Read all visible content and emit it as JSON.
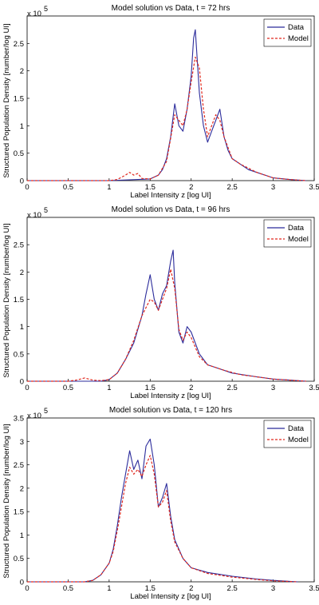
{
  "chart_data": [
    {
      "type": "line",
      "title": "Model solution vs Data, t = 72 hrs",
      "xlabel": "Label Intensity z [log UI]",
      "ylabel": "Structured Population Density [number/log UI]",
      "y_multiplier": "x 10",
      "y_exponent": "5",
      "xlim": [
        0,
        3.5
      ],
      "ylim": [
        0,
        3
      ],
      "x_ticks": [
        0,
        0.5,
        1,
        1.5,
        2,
        2.5,
        3,
        3.5
      ],
      "x_tick_labels": [
        "0",
        "0.5",
        "1",
        "1.5",
        "2",
        "2.5",
        "3",
        "3.5"
      ],
      "y_ticks": [
        0,
        0.5,
        1,
        1.5,
        2,
        2.5
      ],
      "y_tick_labels": [
        "0",
        "0.5",
        "1",
        "1.5",
        "2",
        "2.5"
      ],
      "legend_position": "top-right",
      "series": [
        {
          "name": "Data",
          "color": "#2b2b9b",
          "style": "solid",
          "x": [
            0,
            1.0,
            1.5,
            1.6,
            1.65,
            1.7,
            1.75,
            1.8,
            1.85,
            1.9,
            1.95,
            2.0,
            2.03,
            2.05,
            2.07,
            2.1,
            2.15,
            2.2,
            2.25,
            2.3,
            2.35,
            2.4,
            2.45,
            2.5,
            2.6,
            2.7,
            2.8,
            2.9,
            3.0,
            3.2,
            3.4
          ],
          "y": [
            0,
            0,
            0.03,
            0.1,
            0.2,
            0.4,
            0.8,
            1.4,
            1.0,
            0.9,
            1.3,
            1.9,
            2.6,
            2.75,
            2.3,
            1.6,
            1.0,
            0.7,
            0.9,
            1.1,
            1.3,
            0.8,
            0.55,
            0.4,
            0.3,
            0.2,
            0.15,
            0.1,
            0.05,
            0.02,
            0
          ]
        },
        {
          "name": "Model",
          "color": "#e0281e",
          "style": "dashed",
          "x": [
            0,
            1.0,
            1.1,
            1.2,
            1.25,
            1.3,
            1.35,
            1.4,
            1.5,
            1.6,
            1.7,
            1.8,
            1.85,
            1.9,
            1.95,
            2.0,
            2.05,
            2.1,
            2.15,
            2.2,
            2.25,
            2.3,
            2.35,
            2.4,
            2.5,
            2.6,
            2.8,
            3.0,
            3.2,
            3.4
          ],
          "y": [
            0,
            0,
            0.02,
            0.1,
            0.15,
            0.1,
            0.13,
            0.04,
            0.03,
            0.1,
            0.35,
            1.2,
            1.1,
            1.0,
            1.3,
            1.8,
            2.25,
            2.05,
            1.3,
            0.8,
            1.0,
            1.2,
            1.1,
            0.8,
            0.4,
            0.3,
            0.15,
            0.05,
            0.02,
            0
          ]
        }
      ]
    },
    {
      "type": "line",
      "title": "Model solution vs Data, t = 96 hrs",
      "xlabel": "Label Intensity z [log UI]",
      "ylabel": "Structured Population Density [number/log UI]",
      "y_multiplier": "x 10",
      "y_exponent": "5",
      "xlim": [
        0,
        3.5
      ],
      "ylim": [
        0,
        3
      ],
      "x_ticks": [
        0,
        0.5,
        1,
        1.5,
        2,
        2.5,
        3,
        3.5
      ],
      "x_tick_labels": [
        "0",
        "0.5",
        "1",
        "1.5",
        "2",
        "2.5",
        "3",
        "3.5"
      ],
      "y_ticks": [
        0,
        0.5,
        1,
        1.5,
        2,
        2.5
      ],
      "y_tick_labels": [
        "0",
        "0.5",
        "1",
        "1.5",
        "2",
        "2.5"
      ],
      "legend_position": "top-right",
      "series": [
        {
          "name": "Data",
          "color": "#2b2b9b",
          "style": "solid",
          "x": [
            0,
            0.9,
            1.0,
            1.1,
            1.2,
            1.3,
            1.4,
            1.45,
            1.5,
            1.55,
            1.6,
            1.65,
            1.7,
            1.75,
            1.78,
            1.8,
            1.85,
            1.9,
            1.95,
            2.0,
            2.1,
            2.2,
            2.3,
            2.5,
            2.8,
            3.0,
            3.2,
            3.4
          ],
          "y": [
            0,
            0,
            0.03,
            0.15,
            0.4,
            0.7,
            1.2,
            1.6,
            1.95,
            1.5,
            1.3,
            1.6,
            1.75,
            2.2,
            2.4,
            1.8,
            0.9,
            0.7,
            1.0,
            0.9,
            0.5,
            0.3,
            0.25,
            0.15,
            0.08,
            0.04,
            0.02,
            0
          ]
        },
        {
          "name": "Model",
          "color": "#e0281e",
          "style": "dashed",
          "x": [
            0,
            0.5,
            0.6,
            0.7,
            0.8,
            0.9,
            1.0,
            1.1,
            1.2,
            1.3,
            1.4,
            1.5,
            1.55,
            1.6,
            1.65,
            1.7,
            1.75,
            1.8,
            1.85,
            1.9,
            1.95,
            2.0,
            2.1,
            2.2,
            2.4,
            2.6,
            3.0,
            3.4
          ],
          "y": [
            0,
            0,
            0.02,
            0.06,
            0.02,
            0.01,
            0.03,
            0.15,
            0.4,
            0.75,
            1.2,
            1.5,
            1.45,
            1.3,
            1.5,
            1.7,
            2.05,
            1.7,
            0.95,
            0.75,
            0.9,
            0.8,
            0.45,
            0.3,
            0.2,
            0.12,
            0.04,
            0
          ]
        }
      ]
    },
    {
      "type": "line",
      "title": "Model solution vs Data, t = 120 hrs",
      "xlabel": "Label Intensity z [log UI]",
      "ylabel": "Structured Population Density [number/log UI]",
      "y_multiplier": "x 10",
      "y_exponent": "5",
      "xlim": [
        0,
        3.5
      ],
      "ylim": [
        0,
        3.5
      ],
      "x_ticks": [
        0,
        0.5,
        1,
        1.5,
        2,
        2.5,
        3,
        3.5
      ],
      "x_tick_labels": [
        "0",
        "0.5",
        "1",
        "1.5",
        "2",
        "2.5",
        "3",
        "3.5"
      ],
      "y_ticks": [
        0,
        0.5,
        1,
        1.5,
        2,
        2.5,
        3,
        3.5
      ],
      "y_tick_labels": [
        "0",
        "0.5",
        "1",
        "1.5",
        "2",
        "2.5",
        "3",
        "3.5"
      ],
      "legend_position": "top-right",
      "series": [
        {
          "name": "Data",
          "color": "#2b2b9b",
          "style": "solid",
          "x": [
            0,
            0.7,
            0.8,
            0.9,
            1.0,
            1.05,
            1.1,
            1.15,
            1.2,
            1.25,
            1.3,
            1.35,
            1.4,
            1.45,
            1.5,
            1.55,
            1.6,
            1.65,
            1.7,
            1.75,
            1.8,
            1.9,
            2.0,
            2.2,
            2.5,
            2.8,
            3.0,
            3.3
          ],
          "y": [
            0,
            0,
            0.03,
            0.15,
            0.4,
            0.7,
            1.2,
            1.8,
            2.3,
            2.8,
            2.4,
            2.6,
            2.2,
            2.9,
            3.05,
            2.5,
            1.6,
            1.8,
            2.1,
            1.4,
            0.9,
            0.5,
            0.3,
            0.2,
            0.12,
            0.06,
            0.03,
            0
          ]
        },
        {
          "name": "Model",
          "color": "#e0281e",
          "style": "dashed",
          "x": [
            0,
            0.7,
            0.8,
            0.9,
            1.0,
            1.05,
            1.1,
            1.15,
            1.2,
            1.25,
            1.3,
            1.35,
            1.4,
            1.45,
            1.5,
            1.55,
            1.6,
            1.65,
            1.7,
            1.75,
            1.8,
            1.9,
            2.0,
            2.2,
            2.5,
            2.8,
            3.0,
            3.3
          ],
          "y": [
            0,
            0,
            0.03,
            0.15,
            0.4,
            0.65,
            1.1,
            1.6,
            2.1,
            2.45,
            2.3,
            2.4,
            2.25,
            2.5,
            2.7,
            2.3,
            1.6,
            1.7,
            1.95,
            1.3,
            0.85,
            0.5,
            0.3,
            0.18,
            0.1,
            0.05,
            0.02,
            0
          ]
        }
      ]
    }
  ]
}
